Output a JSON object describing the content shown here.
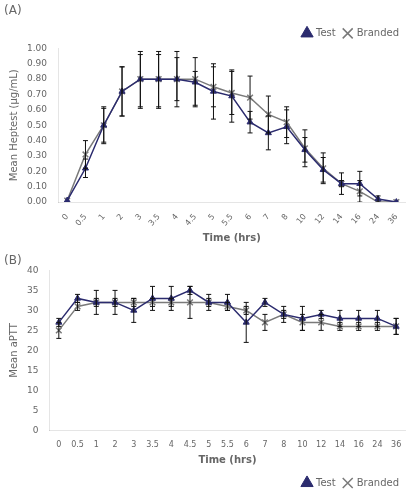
{
  "chart_data": [
    {
      "type": "line",
      "title": "(A)",
      "categories": [
        "0",
        "0.5",
        "1",
        "2",
        "3",
        "3.5",
        "4",
        "4.5",
        "5",
        "5.5",
        "6",
        "7",
        "8",
        "10",
        "12",
        "14",
        "16",
        "24",
        "36"
      ],
      "xlabel": "Time (hrs)",
      "ylabel": "Mean Heptest (µg/mL)",
      "series": [
        {
          "name": "Test",
          "color": "#2b2b6e",
          "marker": "triangle",
          "line_style": "solid",
          "values": [
            0.01,
            0.22,
            0.5,
            0.72,
            0.8,
            0.8,
            0.8,
            0.78,
            0.72,
            0.69,
            0.52,
            0.45,
            0.49,
            0.34,
            0.21,
            0.12,
            0.12,
            0.02,
            0.0
          ],
          "error_lo": [
            0.0,
            0.06,
            0.11,
            0.16,
            0.18,
            0.18,
            0.18,
            0.16,
            0.18,
            0.17,
            0.07,
            0.11,
            0.11,
            0.08,
            0.08,
            0.02,
            0.08,
            0.02,
            0.0
          ],
          "error_hi": [
            0.0,
            0.06,
            0.11,
            0.16,
            0.18,
            0.18,
            0.18,
            0.16,
            0.18,
            0.17,
            0.07,
            0.11,
            0.11,
            0.08,
            0.08,
            0.02,
            0.08,
            0.02,
            0.0
          ]
        },
        {
          "name": "Branded",
          "color": "#7a7a7a",
          "marker": "x",
          "line_style": "solid",
          "values": [
            0.01,
            0.31,
            0.5,
            0.72,
            0.8,
            0.8,
            0.8,
            0.8,
            0.75,
            0.71,
            0.68,
            0.57,
            0.52,
            0.35,
            0.22,
            0.12,
            0.07,
            0.0,
            0.0
          ],
          "error_lo": [
            0.0,
            0.09,
            0.12,
            0.16,
            0.19,
            0.19,
            0.14,
            0.17,
            0.13,
            0.14,
            0.14,
            0.12,
            0.1,
            0.12,
            0.1,
            0.07,
            0.07,
            0.0,
            0.0
          ],
          "error_hi": [
            0.0,
            0.09,
            0.12,
            0.16,
            0.16,
            0.16,
            0.14,
            0.05,
            0.13,
            0.14,
            0.14,
            0.12,
            0.1,
            0.12,
            0.1,
            0.07,
            0.07,
            0.0,
            0.0
          ]
        }
      ],
      "ylim": [
        0.0,
        1.0
      ],
      "yticks": [
        {
          "value": 0.0,
          "label": "0.00"
        },
        {
          "value": 0.1,
          "label": "0.10"
        },
        {
          "value": 0.2,
          "label": "0.20"
        },
        {
          "value": 0.3,
          "label": "0.30"
        },
        {
          "value": 0.4,
          "label": "0.40"
        },
        {
          "value": 0.5,
          "label": "0.50"
        },
        {
          "value": 0.6,
          "label": "0.60"
        },
        {
          "value": 0.7,
          "label": "0.70"
        },
        {
          "value": 0.8,
          "label": "0.80"
        },
        {
          "value": 0.9,
          "label": "0.90"
        },
        {
          "value": 1.0,
          "label": "1.00"
        }
      ],
      "grid": false,
      "legend": "upper right"
    },
    {
      "type": "line",
      "title": "(B)",
      "categories": [
        "0",
        "0.5",
        "1",
        "2",
        "3",
        "3.5",
        "4",
        "4.5",
        "5",
        "5.5",
        "6",
        "7",
        "8",
        "10",
        "12",
        "14",
        "16",
        "24",
        "36"
      ],
      "xlabel": "Time (hrs)",
      "ylabel": "Mean aPTT",
      "series": [
        {
          "name": "Test",
          "color": "#2b2b6e",
          "marker": "triangle",
          "line_style": "solid",
          "values": [
            27,
            33,
            32,
            32,
            30,
            33,
            33,
            35,
            32,
            32,
            27,
            32,
            29,
            28,
            29,
            28,
            28,
            28,
            26
          ],
          "error_lo": [
            1,
            1,
            3,
            3,
            3,
            3,
            3,
            1,
            2,
            2,
            5,
            1,
            2,
            3,
            1,
            2,
            2,
            2,
            2
          ],
          "error_hi": [
            1,
            1,
            3,
            3,
            3,
            3,
            3,
            1,
            2,
            2,
            5,
            1,
            2,
            3,
            1,
            2,
            2,
            2,
            2
          ]
        },
        {
          "name": "Branded",
          "color": "#7a7a7a",
          "marker": "x",
          "line_style": "solid",
          "values": [
            25,
            31,
            32,
            32,
            32,
            32,
            32,
            32,
            32,
            31,
            30,
            27,
            29,
            27,
            27,
            26,
            26,
            26,
            26
          ],
          "error_lo": [
            2,
            1,
            1,
            1,
            1,
            1,
            1,
            4,
            1,
            1,
            1,
            2,
            1,
            2,
            2,
            1,
            1,
            1,
            2
          ],
          "error_hi": [
            2,
            1,
            1,
            1,
            1,
            1,
            1,
            4,
            1,
            1,
            1,
            2,
            1,
            2,
            2,
            1,
            1,
            1,
            2
          ]
        }
      ],
      "ylim": [
        0,
        40
      ],
      "yticks": [
        0,
        5,
        10,
        15,
        20,
        25,
        30,
        35,
        40
      ],
      "grid": false,
      "legend": "lower right"
    }
  ]
}
